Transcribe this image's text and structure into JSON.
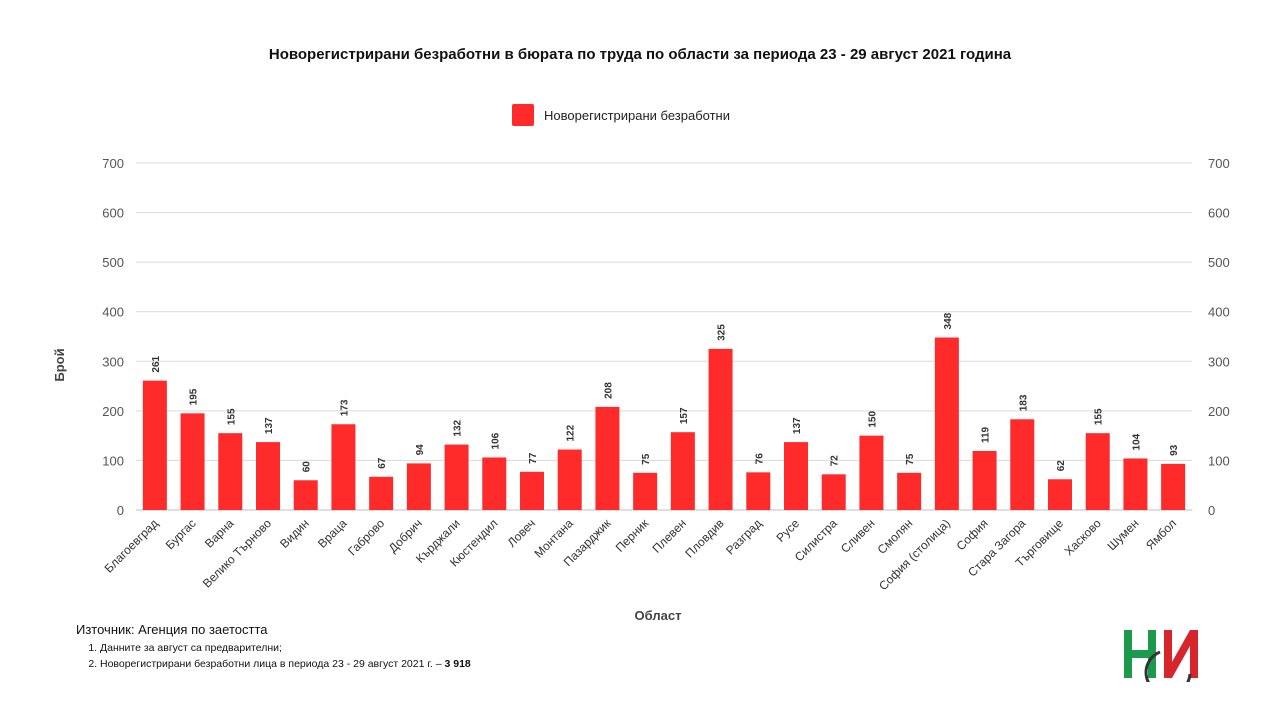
{
  "chart_data": {
    "type": "bar",
    "title": "Новорегистрирани безработни в бюрата по труда по области за периода 23 - 29 август 2021 година",
    "xlabel": "Област",
    "ylabel": "Брой",
    "ylim": [
      0,
      700
    ],
    "yticks": [
      0,
      100,
      200,
      300,
      400,
      500,
      600,
      700
    ],
    "grid": true,
    "legend": "top-center",
    "categories": [
      "Благоевград",
      "Бургас",
      "Варна",
      "Велико Търново",
      "Видин",
      "Враца",
      "Габрово",
      "Добрич",
      "Кърджали",
      "Кюстендил",
      "Ловеч",
      "Монтана",
      "Пазарджик",
      "Перник",
      "Плевен",
      "Пловдив",
      "Разград",
      "Русе",
      "Силистра",
      "Сливен",
      "Смолян",
      "София (столица)",
      "София",
      "Стара Загора",
      "Търговище",
      "Хасково",
      "Шумен",
      "Ямбол"
    ],
    "series": [
      {
        "name": "Новорегистрирани безработни",
        "values": [
          261,
          195,
          155,
          137,
          60,
          173,
          67,
          94,
          132,
          106,
          77,
          122,
          208,
          75,
          157,
          325,
          76,
          137,
          72,
          150,
          75,
          348,
          119,
          183,
          62,
          155,
          104,
          93
        ]
      }
    ],
    "bar_color": "#ff2b2b"
  },
  "footer": {
    "source": "Източник: Агенция по заетостта",
    "notes": [
      {
        "text": "Данните за август са предварителни;",
        "bold": ""
      },
      {
        "text": "Новорегистрирани безработни лица в периода 23 - 29 август 2021 г. – ",
        "bold": "3 918"
      }
    ]
  },
  "logo": {
    "colors": [
      "#1a9a4a",
      "#d6262c",
      "#333333"
    ]
  }
}
